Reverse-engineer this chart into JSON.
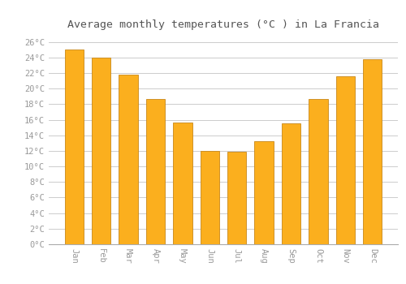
{
  "title": "Average monthly temperatures (°C ) in La Francia",
  "months": [
    "Jan",
    "Feb",
    "Mar",
    "Apr",
    "May",
    "Jun",
    "Jul",
    "Aug",
    "Sep",
    "Oct",
    "Nov",
    "Dec"
  ],
  "values": [
    25.0,
    24.0,
    21.8,
    18.7,
    15.6,
    12.0,
    11.9,
    13.2,
    15.5,
    18.7,
    21.6,
    23.8
  ],
  "bar_color": "#FBAF1E",
  "bar_edge_color": "#C8881A",
  "background_color": "#FFFFFF",
  "plot_background_color": "#FFFFFF",
  "grid_color": "#CCCCCC",
  "tick_label_color": "#999999",
  "title_color": "#555555",
  "ylim": [
    0,
    27
  ],
  "yticks": [
    0,
    2,
    4,
    6,
    8,
    10,
    12,
    14,
    16,
    18,
    20,
    22,
    24,
    26
  ],
  "ytick_labels": [
    "0°C",
    "2°C",
    "4°C",
    "6°C",
    "8°C",
    "10°C",
    "12°C",
    "14°C",
    "16°C",
    "18°C",
    "20°C",
    "22°C",
    "24°C",
    "26°C"
  ],
  "title_fontsize": 9.5,
  "tick_fontsize": 7.5,
  "font_family": "monospace"
}
